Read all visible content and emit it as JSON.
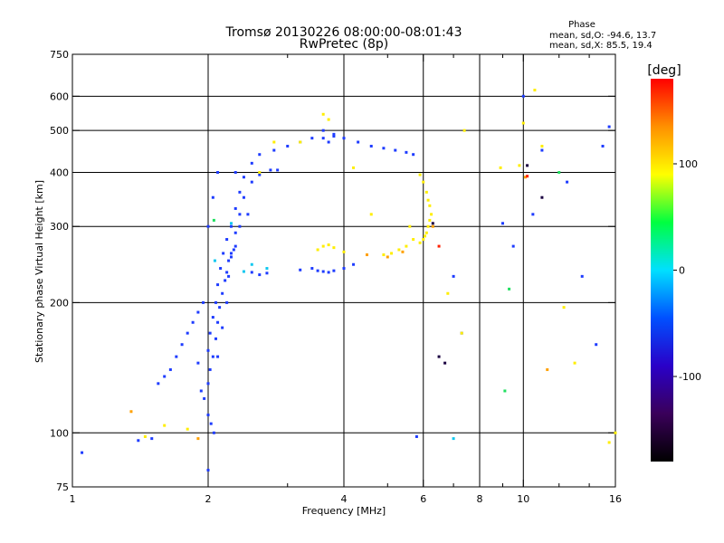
{
  "chart_data": {
    "type": "scatter",
    "title": "Tromsø 20130226 08:00:00-08:01:43",
    "subtitle": "RwPretec (8p)",
    "xlabel": "Frequency [MHz]",
    "ylabel": "Stationary phase Virtual Height [km]",
    "x_scale": "log",
    "y_scale": "log",
    "xlim": [
      1,
      16
    ],
    "ylim": [
      75,
      750
    ],
    "grid": true,
    "x_ticks": [
      1,
      2,
      4,
      6,
      8,
      10,
      16
    ],
    "x_tick_labels": [
      "1",
      "2",
      "4",
      "6",
      "8",
      "10",
      "16"
    ],
    "x_minor_ticks": [
      3,
      5,
      7,
      9,
      12,
      14
    ],
    "x_grid": [
      2,
      4,
      6,
      8,
      10,
      16
    ],
    "y_ticks": [
      75,
      100,
      200,
      300,
      400,
      500,
      600,
      750
    ],
    "y_tick_labels": [
      "75",
      "100",
      "200",
      "300",
      "400",
      "500",
      "600",
      "750"
    ],
    "y_grid": [
      100,
      200,
      300,
      400,
      500,
      600
    ],
    "stats": {
      "heading": "Phase",
      "line_o": "mean, sd,O: -94.6, 13.7",
      "line_x": "mean, sd,X: 85.5, 19.4"
    },
    "colorbar": {
      "label": "[deg]",
      "range": [
        -180,
        180
      ],
      "ticks": [
        100,
        0,
        -100
      ],
      "tick_labels": [
        "100",
        "0",
        "-100"
      ],
      "colors": [
        "#000000",
        "#3a005a",
        "#2a00c8",
        "#0050ff",
        "#00e0ff",
        "#00ff40",
        "#ffff00",
        "#ff9000",
        "#ff0000"
      ]
    },
    "series": [
      {
        "phase_deg": -95,
        "color": "#1e3cff",
        "x": [
          2.0,
          2.02,
          2.05,
          2.08,
          2.1,
          2.12,
          2.15,
          2.18,
          2.2,
          2.22,
          2.25,
          2.28,
          2.3,
          2.2,
          2.25,
          2.3,
          2.35,
          2.4,
          2.5,
          2.6,
          2.8,
          3.0,
          3.2,
          3.4,
          3.6,
          3.8,
          4.0,
          4.3,
          4.6,
          4.9,
          5.2,
          5.5,
          5.7,
          2.1,
          2.15,
          2.2,
          2.22,
          2.25,
          2.3,
          2.35,
          2.4,
          2.5,
          2.6,
          2.75,
          2.85,
          3.2,
          3.4,
          3.5,
          3.6,
          3.7,
          3.8,
          4.0,
          4.2,
          2.5,
          2.6,
          2.7,
          1.95,
          1.9,
          1.85,
          1.8,
          1.75,
          1.7,
          1.65,
          1.6,
          1.55,
          1.93,
          1.96,
          2.0,
          2.03,
          2.06,
          1.9,
          2.0,
          2.02,
          2.05,
          2.08,
          2.1,
          2.13,
          2.16,
          2.0,
          2.05,
          2.1,
          1.5,
          1.4,
          1.05,
          2.0,
          5.8,
          9.0,
          9.5,
          10.5,
          12.5,
          13.5,
          14.5,
          15.0,
          15.5,
          7.0,
          11.0,
          7.3,
          10.0,
          3.6,
          3.7,
          3.8,
          2.3,
          2.35,
          2.45
        ],
        "y": [
          130,
          140,
          150,
          165,
          180,
          195,
          210,
          225,
          235,
          250,
          260,
          265,
          270,
          280,
          300,
          330,
          360,
          390,
          420,
          440,
          450,
          460,
          470,
          480,
          500,
          490,
          480,
          470,
          460,
          455,
          450,
          445,
          440,
          150,
          175,
          200,
          230,
          255,
          290,
          320,
          350,
          380,
          395,
          405,
          405,
          238,
          240,
          237,
          236,
          235,
          237,
          240,
          245,
          235,
          232,
          234,
          200,
          190,
          180,
          170,
          160,
          150,
          140,
          135,
          130,
          125,
          120,
          110,
          105,
          100,
          145,
          155,
          170,
          185,
          200,
          220,
          240,
          260,
          300,
          350,
          400,
          97,
          96,
          90,
          82,
          98,
          305,
          270,
          320,
          380,
          230,
          160,
          460,
          510,
          230,
          450,
          170,
          600,
          480,
          470,
          485,
          400,
          300,
          320
        ]
      },
      {
        "phase_deg": 85,
        "color": "#ffee00",
        "x": [
          5.9,
          6.0,
          6.05,
          6.1,
          6.15,
          6.2,
          6.25,
          6.2,
          6.15,
          6.1,
          6.0,
          5.9,
          5.7,
          5.5,
          5.3,
          5.1,
          4.9,
          3.5,
          3.6,
          3.7,
          3.8,
          4.0,
          2.8,
          2.6,
          4.6,
          10.0,
          10.6,
          11.0,
          12.3,
          15.5,
          16.0,
          6.8,
          7.4,
          8.9,
          9.8,
          1.45,
          1.6,
          1.8,
          3.6,
          3.7,
          3.2,
          4.2,
          5.6,
          13.0,
          7.3
        ],
        "y": [
          275,
          280,
          285,
          290,
          300,
          310,
          320,
          335,
          345,
          360,
          380,
          395,
          280,
          270,
          265,
          260,
          258,
          265,
          270,
          272,
          268,
          262,
          470,
          400,
          320,
          520,
          620,
          460,
          195,
          95,
          100,
          210,
          500,
          410,
          415,
          98,
          104,
          102,
          545,
          530,
          470,
          410,
          300,
          145,
          170
        ]
      },
      {
        "phase_deg": 130,
        "color": "#ffa000",
        "x": [
          4.5,
          5.0,
          5.4,
          6.3,
          1.35,
          1.9,
          10.1,
          11.3
        ],
        "y": [
          258,
          255,
          262,
          300,
          112,
          97,
          390,
          140
        ]
      },
      {
        "phase_deg": 175,
        "color": "#ff2000",
        "x": [
          6.5,
          10.2
        ],
        "y": [
          270,
          392
        ]
      },
      {
        "phase_deg": 20,
        "color": "#20e060",
        "x": [
          2.06,
          9.1,
          9.3,
          12.0
        ],
        "y": [
          310,
          125,
          215,
          400
        ]
      },
      {
        "phase_deg": -40,
        "color": "#10c8f0",
        "x": [
          2.07,
          2.5,
          2.7,
          2.25,
          7.0,
          2.4
        ],
        "y": [
          250,
          245,
          240,
          305,
          97,
          236
        ]
      },
      {
        "phase_deg": -170,
        "color": "#1a0040",
        "x": [
          6.3,
          6.5,
          6.7,
          10.2,
          11.0
        ],
        "y": [
          305,
          150,
          145,
          415,
          350
        ]
      }
    ]
  }
}
